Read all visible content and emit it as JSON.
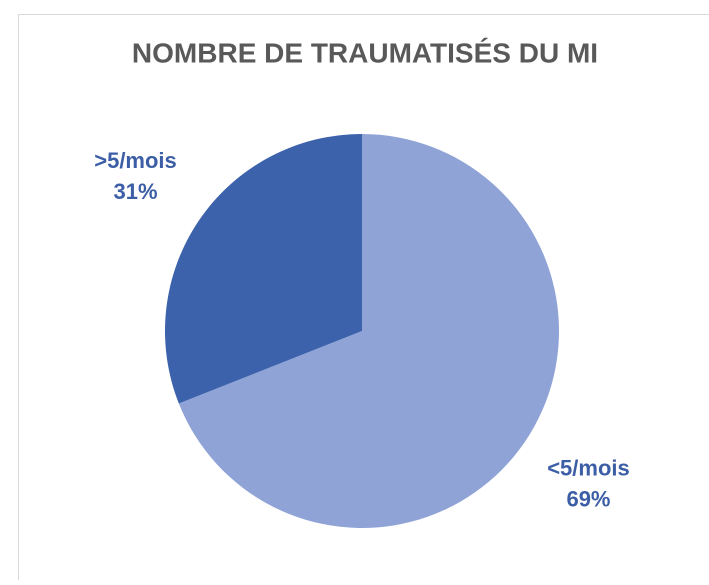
{
  "chart_data": {
    "type": "pie",
    "title": "NOMBRE DE TRAUMATISÉS DU MI",
    "categories": [
      "<5/mois",
      ">5/mois"
    ],
    "values": [
      69,
      31
    ],
    "value_labels": [
      "69%",
      "31%"
    ],
    "colors": [
      "#8fa3d6",
      "#3c62ab"
    ]
  }
}
